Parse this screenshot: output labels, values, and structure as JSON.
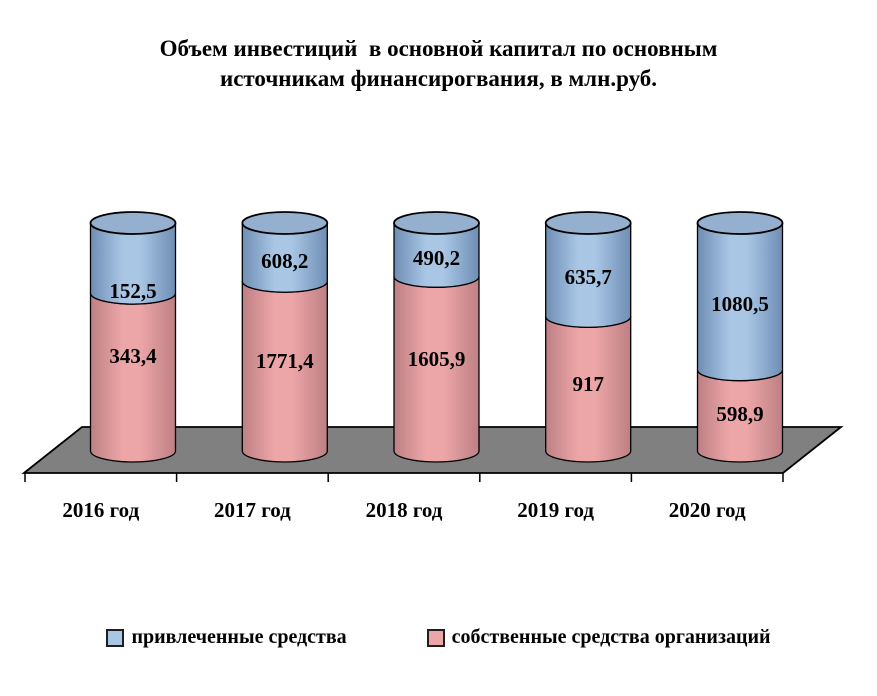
{
  "chart_data": {
    "type": "bar",
    "subtype": "3d-cylinder-stacked-percent",
    "title": "Объем инвестиций  в основной капитал по основным\nисточникам финансирогвания, в млн.руб.",
    "unit": "млн.руб.",
    "categories": [
      "2016 год",
      "2017 год",
      "2018 год",
      "2019 год",
      "2020 год"
    ],
    "series": [
      {
        "name": "привлеченные средства",
        "stack_position": "top",
        "color": "#A9C6E5",
        "edge_dark": "#6F8EB4",
        "top_face_color": "#95AFCE",
        "values": [
          152.5,
          608.2,
          490.2,
          635.7,
          1080.5
        ],
        "labels": [
          "152,5",
          "608,2",
          "490,2",
          "635,7",
          "1080,5"
        ]
      },
      {
        "name": "собственные средства организаций",
        "stack_position": "bottom",
        "color": "#EDA6A8",
        "edge_dark": "#BD8083",
        "values": [
          343.4,
          1771.4,
          1605.9,
          917,
          598.9
        ],
        "labels": [
          "343,4",
          "1771,4",
          "1605,9",
          "917",
          "598,9"
        ]
      }
    ],
    "stacking": "percent",
    "floor_color": "#808080",
    "outline_color": "#000000",
    "label_color": "#000000",
    "legend_position": "bottom",
    "axes": {
      "value_axis_visible": false,
      "gridlines": false
    }
  }
}
